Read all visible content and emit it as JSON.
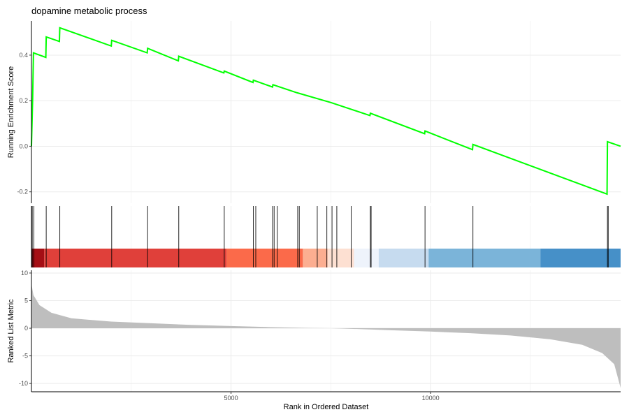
{
  "chart_data": {
    "type": "line",
    "title": "dopamine metabolic process",
    "xlabel": "Rank in Ordered Dataset",
    "x_tick_labels": [
      "5000",
      "10000"
    ],
    "x_ticks": [
      5000,
      10000
    ],
    "xlim": [
      0,
      14760
    ],
    "grid": true,
    "panels": {
      "running_score": {
        "ylabel": "Running Enrichment Score",
        "ylim": [
          -0.25,
          0.55
        ],
        "y_ticks": [
          -0.2,
          0.0,
          0.2,
          0.4
        ],
        "y_tick_labels": [
          "-0.2",
          "0.0",
          "0.2",
          "0.4"
        ],
        "line_color": "#00ff00",
        "series": [
          {
            "points": [
              [
                0,
                0.0
              ],
              [
                30,
                0.21
              ],
              [
                50,
                0.41
              ],
              [
                360,
                0.39
              ],
              [
                370,
                0.48
              ],
              [
                700,
                0.46
              ],
              [
                710,
                0.52
              ],
              [
                2000,
                0.44
              ],
              [
                2010,
                0.465
              ],
              [
                2900,
                0.41
              ],
              [
                2910,
                0.43
              ],
              [
                3680,
                0.375
              ],
              [
                3690,
                0.395
              ],
              [
                4820,
                0.322
              ],
              [
                4830,
                0.33
              ],
              [
                5550,
                0.28
              ],
              [
                5560,
                0.29
              ],
              [
                6040,
                0.26
              ],
              [
                6050,
                0.27
              ],
              [
                6650,
                0.235
              ],
              [
                7500,
                0.192
              ],
              [
                8480,
                0.135
              ],
              [
                8490,
                0.145
              ],
              [
                9850,
                0.055
              ],
              [
                9860,
                0.067
              ],
              [
                11050,
                -0.015
              ],
              [
                11060,
                0.008
              ],
              [
                14420,
                -0.21
              ],
              [
                14430,
                0.02
              ],
              [
                14760,
                0.0
              ]
            ]
          }
        ]
      },
      "hits": {
        "positions": [
          20,
          60,
          370,
          710,
          2010,
          2910,
          3690,
          4830,
          5560,
          5620,
          6040,
          6080,
          6160,
          6670,
          6710,
          7160,
          7400,
          7530,
          7650,
          8010,
          8490,
          8510,
          9860,
          11060,
          14430,
          14450
        ],
        "color_bands": [
          {
            "from": 0,
            "to": 320,
            "color": "#a50f15"
          },
          {
            "from": 320,
            "to": 4890,
            "color": "#e0403a"
          },
          {
            "from": 4890,
            "to": 6800,
            "color": "#fb6a4a"
          },
          {
            "from": 6800,
            "to": 7420,
            "color": "#fcae91"
          },
          {
            "from": 7420,
            "to": 8080,
            "color": "#fde0d2"
          },
          {
            "from": 8080,
            "to": 8700,
            "color": "#eef3fb"
          },
          {
            "from": 8700,
            "to": 9950,
            "color": "#c6dbef"
          },
          {
            "from": 9950,
            "to": 12750,
            "color": "#7bb4d9"
          },
          {
            "from": 12750,
            "to": 14760,
            "color": "#4690c8"
          }
        ]
      },
      "ranked_metric": {
        "ylabel": "Ranked List Metric",
        "ylim": [
          -11.5,
          10.5
        ],
        "y_ticks": [
          -10,
          -5,
          0,
          5,
          10
        ],
        "y_tick_labels": [
          "-10",
          "-5",
          "0",
          "5",
          "10"
        ],
        "fill_color": "#bebebe",
        "points": [
          [
            0,
            8.0
          ],
          [
            50,
            6.0
          ],
          [
            200,
            4.2
          ],
          [
            500,
            2.8
          ],
          [
            1000,
            1.8
          ],
          [
            2000,
            1.2
          ],
          [
            3000,
            0.9
          ],
          [
            4000,
            0.6
          ],
          [
            5000,
            0.4
          ],
          [
            6000,
            0.2
          ],
          [
            7000,
            0.05
          ],
          [
            7500,
            0.0
          ],
          [
            8000,
            -0.1
          ],
          [
            9000,
            -0.35
          ],
          [
            10000,
            -0.6
          ],
          [
            11000,
            -0.9
          ],
          [
            12000,
            -1.3
          ],
          [
            13000,
            -2.0
          ],
          [
            13800,
            -3.0
          ],
          [
            14300,
            -4.5
          ],
          [
            14600,
            -6.5
          ],
          [
            14760,
            -10.8
          ]
        ]
      }
    }
  }
}
